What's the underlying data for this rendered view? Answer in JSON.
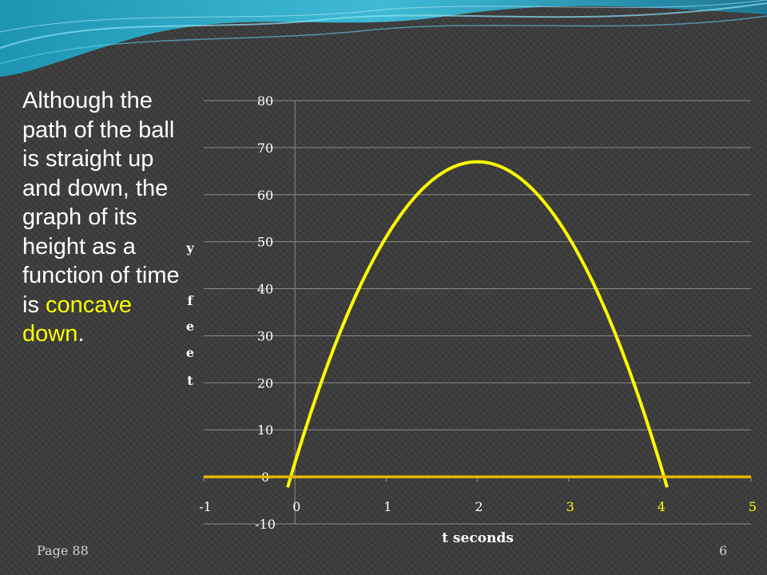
{
  "slide": {
    "text_parts": [
      "Although the path of the ball is straight up and down, the graph of its height as a function of time is ",
      "concave down",
      "."
    ],
    "footer_page": "Page 88",
    "slide_number": "6",
    "accent_color": "#ffff00",
    "text_color": "#ffffff"
  },
  "chart_data": {
    "type": "line",
    "xlabel": "t seconds",
    "ylabel_chars": [
      "y",
      "",
      "f",
      "e",
      "e",
      "t"
    ],
    "xlim": [
      -1,
      5
    ],
    "ylim": [
      -10,
      80
    ],
    "x_ticks": [
      -1,
      0,
      1,
      2,
      3,
      4,
      5
    ],
    "y_ticks": [
      -10,
      0,
      10,
      20,
      30,
      40,
      50,
      60,
      70,
      80
    ],
    "function": "y = -16t^2 + 64t + 3",
    "x": [
      -0.1,
      0,
      0.5,
      1,
      1.5,
      2,
      2.5,
      3,
      3.5,
      4,
      4.1
    ],
    "y": [
      -3.56,
      3,
      31,
      51,
      63,
      67,
      63,
      51,
      31,
      3,
      -3.56
    ],
    "series": [
      {
        "color": "#ffff00"
      }
    ],
    "zero_line_color": "#e6b800",
    "grid": true
  }
}
